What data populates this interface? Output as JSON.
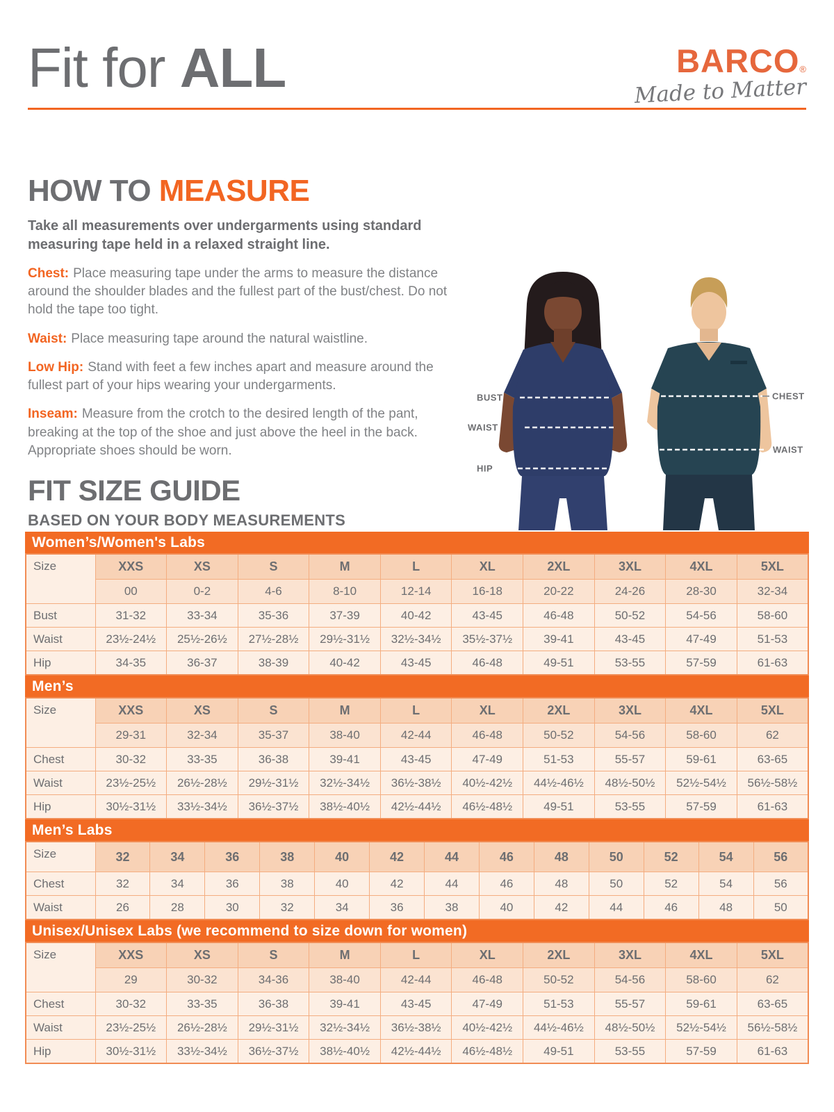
{
  "colors": {
    "accent_orange": "#f26522",
    "band_orange": "#f26b24",
    "logo_orange": "#e6673c",
    "heading_gray": "#6d6e71",
    "body_gray": "#808285",
    "cell_bg": "#fdefe4",
    "size_header_bg": "#f8d2b6",
    "range_row_bg": "#fbe3d1",
    "woman_scrub_navy": "#2e3d69",
    "man_scrub_teal": "#264452"
  },
  "header": {
    "title_light": "Fit for ",
    "title_bold": "ALL",
    "brand": "BARCO",
    "registered": "®",
    "tagline": "Made to Matter"
  },
  "how_to_measure": {
    "heading_prefix": "HOW TO ",
    "heading_accent": "MEASURE",
    "intro": "Take all measurements over undergarments using standard measuring tape held in a relaxed straight line.",
    "items": [
      {
        "label": "Chest:",
        "text": "Place measuring tape under the arms to measure the distance around the shoulder blades and the fullest part of the bust/chest. Do not hold the tape too tight."
      },
      {
        "label": "Waist:",
        "text": "Place measuring tape around the natural waistline."
      },
      {
        "label": "Low Hip:",
        "text": "Stand with feet a few inches apart and measure around the fullest part of your hips wearing your undergarments."
      },
      {
        "label": "Inseam:",
        "text": "Measure from the crotch to the desired length of the pant, breaking at the top of the shoe and just above the heel in the back. Appropriate shoes should be worn."
      }
    ]
  },
  "figure": {
    "left_labels": [
      "BUST",
      "WAIST",
      "HIP"
    ],
    "right_labels": [
      "CHEST",
      "WAIST"
    ]
  },
  "size_guide": {
    "heading": "FIT SIZE GUIDE",
    "subheading": "BASED ON YOUR BODY MEASUREMENTS",
    "tables": [
      {
        "title": "Women’s/Women's Labs",
        "size_label": "Size",
        "sizes": [
          "XXS",
          "XS",
          "S",
          "M",
          "L",
          "XL",
          "2XL",
          "3XL",
          "4XL",
          "5XL"
        ],
        "size_ranges": [
          "00",
          "0-2",
          "4-6",
          "8-10",
          "12-14",
          "16-18",
          "20-22",
          "24-26",
          "28-30",
          "32-34"
        ],
        "rows": [
          {
            "label": "Bust",
            "values": [
              "31-32",
              "33-34",
              "35-36",
              "37-39",
              "40-42",
              "43-45",
              "46-48",
              "50-52",
              "54-56",
              "58-60"
            ]
          },
          {
            "label": "Waist",
            "values": [
              "23½-24½",
              "25½-26½",
              "27½-28½",
              "29½-31½",
              "32½-34½",
              "35½-37½",
              "39-41",
              "43-45",
              "47-49",
              "51-53"
            ]
          },
          {
            "label": "Hip",
            "values": [
              "34-35",
              "36-37",
              "38-39",
              "40-42",
              "43-45",
              "46-48",
              "49-51",
              "53-55",
              "57-59",
              "61-63"
            ]
          }
        ]
      },
      {
        "title": "Men’s",
        "size_label": "Size",
        "sizes": [
          "XXS",
          "XS",
          "S",
          "M",
          "L",
          "XL",
          "2XL",
          "3XL",
          "4XL",
          "5XL"
        ],
        "size_ranges": [
          "29-31",
          "32-34",
          "35-37",
          "38-40",
          "42-44",
          "46-48",
          "50-52",
          "54-56",
          "58-60",
          "62"
        ],
        "rows": [
          {
            "label": "Chest",
            "values": [
              "30-32",
              "33-35",
              "36-38",
              "39-41",
              "43-45",
              "47-49",
              "51-53",
              "55-57",
              "59-61",
              "63-65"
            ]
          },
          {
            "label": "Waist",
            "values": [
              "23½-25½",
              "26½-28½",
              "29½-31½",
              "32½-34½",
              "36½-38½",
              "40½-42½",
              "44½-46½",
              "48½-50½",
              "52½-54½",
              "56½-58½"
            ]
          },
          {
            "label": "Hip",
            "values": [
              "30½-31½",
              "33½-34½",
              "36½-37½",
              "38½-40½",
              "42½-44½",
              "46½-48½",
              "49-51",
              "53-55",
              "57-59",
              "61-63"
            ]
          }
        ]
      },
      {
        "title": "Men’s Labs",
        "size_label": "Size",
        "sizes": [
          "32",
          "34",
          "36",
          "38",
          "40",
          "42",
          "44",
          "46",
          "48",
          "50",
          "52",
          "54",
          "56"
        ],
        "size_ranges": null,
        "rows": [
          {
            "label": "Chest",
            "values": [
              "32",
              "34",
              "36",
              "38",
              "40",
              "42",
              "44",
              "46",
              "48",
              "50",
              "52",
              "54",
              "56"
            ]
          },
          {
            "label": "Waist",
            "values": [
              "26",
              "28",
              "30",
              "32",
              "34",
              "36",
              "38",
              "40",
              "42",
              "44",
              "46",
              "48",
              "50"
            ]
          }
        ]
      },
      {
        "title": "Unisex/Unisex Labs (we recommend to size down for women)",
        "size_label": "Size",
        "sizes": [
          "XXS",
          "XS",
          "S",
          "M",
          "L",
          "XL",
          "2XL",
          "3XL",
          "4XL",
          "5XL"
        ],
        "size_ranges": [
          "29",
          "30-32",
          "34-36",
          "38-40",
          "42-44",
          "46-48",
          "50-52",
          "54-56",
          "58-60",
          "62"
        ],
        "rows": [
          {
            "label": "Chest",
            "values": [
              "30-32",
              "33-35",
              "36-38",
              "39-41",
              "43-45",
              "47-49",
              "51-53",
              "55-57",
              "59-61",
              "63-65"
            ]
          },
          {
            "label": "Waist",
            "values": [
              "23½-25½",
              "26½-28½",
              "29½-31½",
              "32½-34½",
              "36½-38½",
              "40½-42½",
              "44½-46½",
              "48½-50½",
              "52½-54½",
              "56½-58½"
            ]
          },
          {
            "label": "Hip",
            "values": [
              "30½-31½",
              "33½-34½",
              "36½-37½",
              "38½-40½",
              "42½-44½",
              "46½-48½",
              "49-51",
              "53-55",
              "57-59",
              "61-63"
            ]
          }
        ]
      }
    ]
  }
}
